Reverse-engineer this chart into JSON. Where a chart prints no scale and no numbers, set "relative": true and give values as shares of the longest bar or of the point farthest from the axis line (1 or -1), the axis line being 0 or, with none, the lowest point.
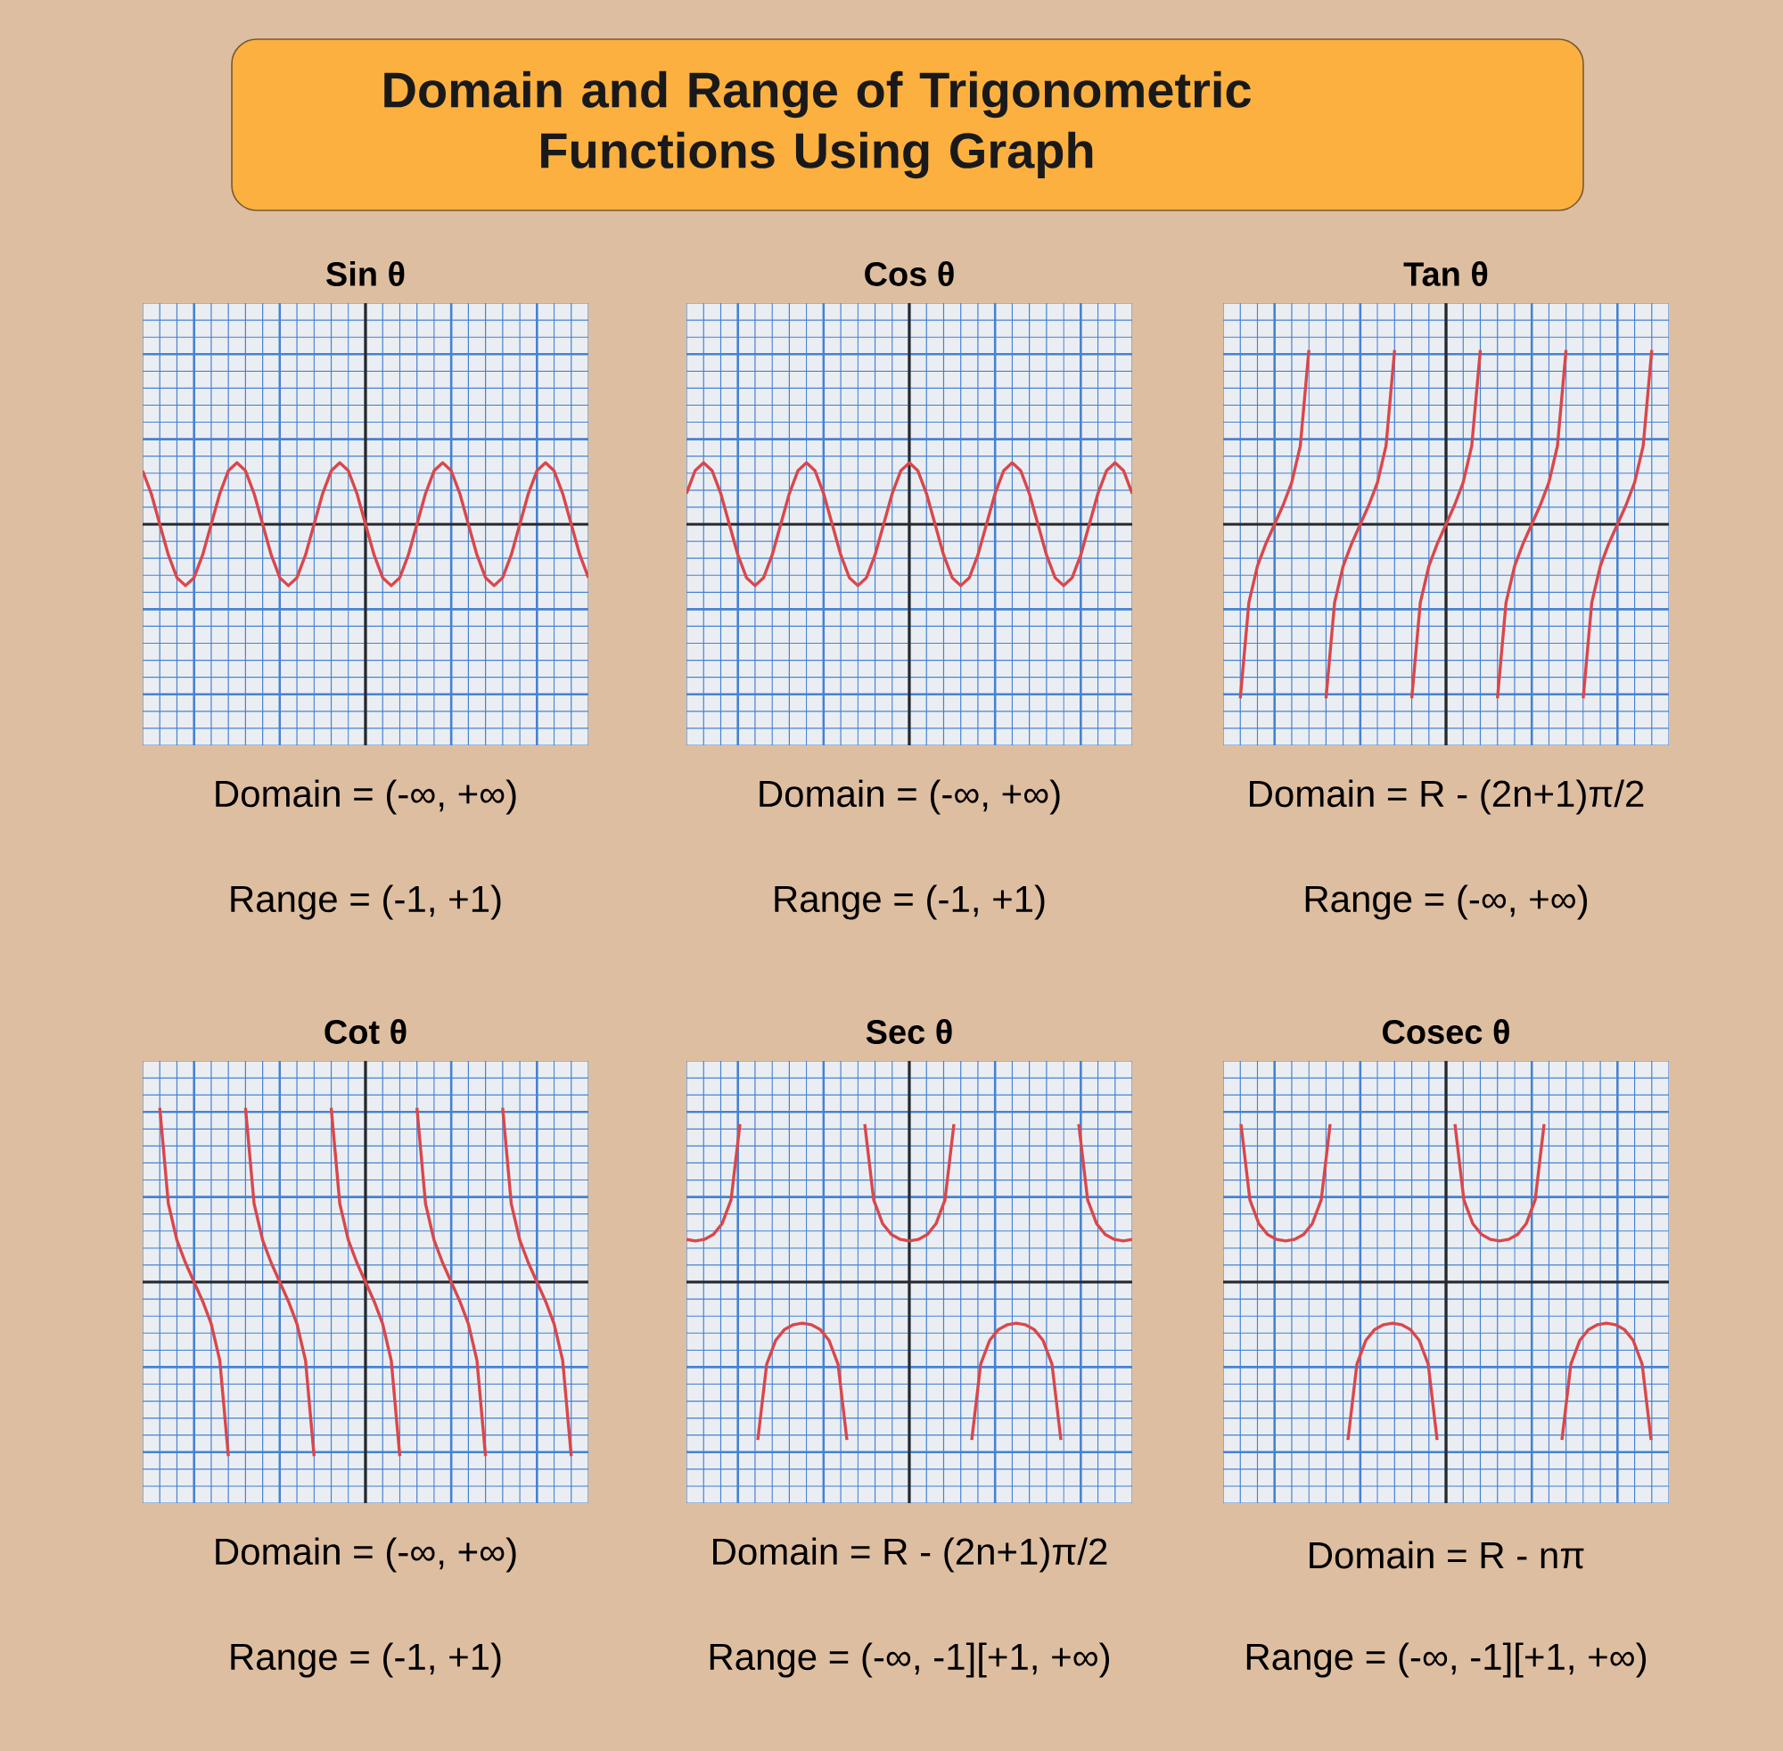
{
  "chart_data": [
    {
      "type": "other",
      "title": "Domain and Range of Trigonometric Functions Using Graph"
    },
    {
      "type": "line",
      "title": "Sin θ",
      "relative": true,
      "grid": true,
      "color": "#d9474c",
      "annotations": [
        "Domain = (-∞, +∞)",
        "Range = (-1, +1)"
      ],
      "categories": [
        null,
        null,
        null,
        null,
        null,
        null,
        null,
        null,
        null,
        null,
        null,
        null,
        null,
        null,
        null,
        null,
        null,
        null,
        null,
        null,
        null,
        null,
        null,
        null,
        null,
        null,
        null,
        null,
        null,
        null,
        null,
        null,
        null,
        null,
        null,
        null,
        null,
        null,
        null,
        null,
        null,
        null,
        null,
        null,
        null,
        null,
        null,
        null,
        null,
        null,
        null,
        null,
        null
      ],
      "values": [
        0.87,
        0.5,
        0,
        -0.5,
        -0.87,
        -1,
        -0.87,
        -0.5,
        0,
        0.5,
        0.87,
        1,
        0.87,
        0.5,
        0,
        -0.5,
        -0.87,
        -1,
        -0.87,
        -0.5,
        0,
        0.5,
        0.87,
        1,
        0.87,
        0.5,
        0,
        -0.5,
        -0.87,
        -1,
        -0.87,
        -0.5,
        0,
        0.5,
        0.87,
        1,
        0.87,
        0.5,
        0,
        -0.5,
        -0.87,
        -1,
        -0.87,
        -0.5,
        0,
        0.5,
        0.87,
        1,
        0.87,
        0.5,
        0,
        -0.5,
        -0.87
      ]
    },
    {
      "type": "line",
      "title": "Cos θ",
      "relative": true,
      "grid": true,
      "color": "#d9474c",
      "annotations": [
        "Domain = (-∞, +∞)",
        "Range = (-1, +1)"
      ],
      "categories": [
        null,
        null,
        null,
        null,
        null,
        null,
        null,
        null,
        null,
        null,
        null,
        null,
        null,
        null,
        null,
        null,
        null,
        null,
        null,
        null,
        null,
        null,
        null,
        null,
        null,
        null,
        null,
        null,
        null,
        null,
        null,
        null,
        null,
        null,
        null,
        null,
        null,
        null,
        null,
        null,
        null,
        null,
        null,
        null,
        null,
        null,
        null,
        null,
        null,
        null,
        null,
        null,
        null
      ],
      "values": [
        0.5,
        0.87,
        1,
        0.87,
        0.5,
        0,
        -0.5,
        -0.87,
        -1,
        -0.87,
        -0.5,
        0,
        0.5,
        0.87,
        1,
        0.87,
        0.5,
        0,
        -0.5,
        -0.87,
        -1,
        -0.87,
        -0.5,
        0,
        0.5,
        0.87,
        1,
        0.87,
        0.5,
        0,
        -0.5,
        -0.87,
        -1,
        -0.87,
        -0.5,
        0,
        0.5,
        0.87,
        1,
        0.87,
        0.5,
        0,
        -0.5,
        -0.87,
        -1,
        -0.87,
        -0.5,
        0,
        0.5,
        0.87,
        1,
        0.87,
        0.5
      ]
    },
    {
      "type": "line",
      "title": "Tan θ",
      "relative": true,
      "grid": true,
      "annotations": [
        "Domain = R - (2n+1)π/2",
        "Range = (-∞, +∞)"
      ],
      "categories": [
        null,
        null,
        null,
        null,
        null,
        null,
        null,
        null,
        null,
        null,
        null,
        null,
        null,
        null,
        null,
        null,
        null,
        null,
        null,
        null,
        null,
        null,
        null,
        null,
        null,
        null,
        null,
        null,
        null,
        null,
        null,
        null,
        null,
        null,
        null,
        null,
        null,
        null,
        null,
        null,
        null,
        null,
        null,
        null,
        null,
        null,
        null,
        null,
        null,
        null,
        null,
        null,
        null
      ],
      "series": [
        {
          "color": "#d9474c",
          "values": [
            null,
            null,
            -1,
            -0.45,
            -0.24,
            -0.11,
            0,
            0.11,
            0.24,
            0.45,
            1,
            null,
            null,
            null,
            null,
            null,
            null,
            null,
            null,
            null,
            null,
            null,
            null,
            null,
            null,
            null,
            null,
            null,
            null,
            null,
            null,
            null,
            null,
            null,
            null,
            null,
            null,
            null,
            null,
            null,
            null,
            null,
            null,
            null,
            null,
            null,
            null,
            null,
            null,
            null,
            null,
            null,
            null
          ]
        },
        {
          "color": "#d9474c",
          "values": [
            null,
            null,
            null,
            null,
            null,
            null,
            null,
            null,
            null,
            null,
            null,
            null,
            -1,
            -0.45,
            -0.24,
            -0.11,
            0,
            0.11,
            0.24,
            0.45,
            1,
            null,
            null,
            null,
            null,
            null,
            null,
            null,
            null,
            null,
            null,
            null,
            null,
            null,
            null,
            null,
            null,
            null,
            null,
            null,
            null,
            null,
            null,
            null,
            null,
            null,
            null,
            null,
            null,
            null,
            null,
            null,
            null
          ]
        },
        {
          "color": "#d9474c",
          "values": [
            null,
            null,
            null,
            null,
            null,
            null,
            null,
            null,
            null,
            null,
            null,
            null,
            null,
            null,
            null,
            null,
            null,
            null,
            null,
            null,
            null,
            null,
            -1,
            -0.45,
            -0.24,
            -0.11,
            0,
            0.11,
            0.24,
            0.45,
            1,
            null,
            null,
            null,
            null,
            null,
            null,
            null,
            null,
            null,
            null,
            null,
            null,
            null,
            null,
            null,
            null,
            null,
            null,
            null,
            null,
            null,
            null
          ]
        },
        {
          "color": "#d9474c",
          "values": [
            null,
            null,
            null,
            null,
            null,
            null,
            null,
            null,
            null,
            null,
            null,
            null,
            null,
            null,
            null,
            null,
            null,
            null,
            null,
            null,
            null,
            null,
            null,
            null,
            null,
            null,
            null,
            null,
            null,
            null,
            null,
            null,
            -1,
            -0.45,
            -0.24,
            -0.11,
            0,
            0.11,
            0.24,
            0.45,
            1,
            null,
            null,
            null,
            null,
            null,
            null,
            null,
            null,
            null,
            null,
            null,
            null
          ]
        },
        {
          "color": "#d9474c",
          "values": [
            null,
            null,
            null,
            null,
            null,
            null,
            null,
            null,
            null,
            null,
            null,
            null,
            null,
            null,
            null,
            null,
            null,
            null,
            null,
            null,
            null,
            null,
            null,
            null,
            null,
            null,
            null,
            null,
            null,
            null,
            null,
            null,
            null,
            null,
            null,
            null,
            null,
            null,
            null,
            null,
            null,
            null,
            -1,
            -0.45,
            -0.24,
            -0.11,
            0,
            0.11,
            0.24,
            0.45,
            1,
            null,
            null
          ]
        }
      ]
    },
    {
      "type": "line",
      "title": "Cot θ",
      "relative": true,
      "grid": true,
      "annotations": [
        "Domain = (-∞, +∞)",
        "Range = (-1, +1)"
      ],
      "categories": [
        null,
        null,
        null,
        null,
        null,
        null,
        null,
        null,
        null,
        null,
        null,
        null,
        null,
        null,
        null,
        null,
        null,
        null,
        null,
        null,
        null,
        null,
        null,
        null,
        null,
        null,
        null,
        null,
        null,
        null,
        null,
        null,
        null,
        null,
        null,
        null,
        null,
        null,
        null,
        null,
        null,
        null,
        null,
        null,
        null,
        null,
        null,
        null,
        null,
        null,
        null,
        null,
        null
      ],
      "series": [
        {
          "color": "#d9474c",
          "values": [
            null,
            null,
            1,
            0.45,
            0.24,
            0.11,
            0,
            -0.11,
            -0.24,
            -0.45,
            -1,
            null,
            null,
            null,
            null,
            null,
            null,
            null,
            null,
            null,
            null,
            null,
            null,
            null,
            null,
            null,
            null,
            null,
            null,
            null,
            null,
            null,
            null,
            null,
            null,
            null,
            null,
            null,
            null,
            null,
            null,
            null,
            null,
            null,
            null,
            null,
            null,
            null,
            null,
            null,
            null,
            null,
            null
          ]
        },
        {
          "color": "#d9474c",
          "values": [
            null,
            null,
            null,
            null,
            null,
            null,
            null,
            null,
            null,
            null,
            null,
            null,
            1,
            0.45,
            0.24,
            0.11,
            0,
            -0.11,
            -0.24,
            -0.45,
            -1,
            null,
            null,
            null,
            null,
            null,
            null,
            null,
            null,
            null,
            null,
            null,
            null,
            null,
            null,
            null,
            null,
            null,
            null,
            null,
            null,
            null,
            null,
            null,
            null,
            null,
            null,
            null,
            null,
            null,
            null,
            null,
            null
          ]
        },
        {
          "color": "#d9474c",
          "values": [
            null,
            null,
            null,
            null,
            null,
            null,
            null,
            null,
            null,
            null,
            null,
            null,
            null,
            null,
            null,
            null,
            null,
            null,
            null,
            null,
            null,
            null,
            1,
            0.45,
            0.24,
            0.11,
            0,
            -0.11,
            -0.24,
            -0.45,
            -1,
            null,
            null,
            null,
            null,
            null,
            null,
            null,
            null,
            null,
            null,
            null,
            null,
            null,
            null,
            null,
            null,
            null,
            null,
            null,
            null,
            null,
            null
          ]
        },
        {
          "color": "#d9474c",
          "values": [
            null,
            null,
            null,
            null,
            null,
            null,
            null,
            null,
            null,
            null,
            null,
            null,
            null,
            null,
            null,
            null,
            null,
            null,
            null,
            null,
            null,
            null,
            null,
            null,
            null,
            null,
            null,
            null,
            null,
            null,
            null,
            null,
            1,
            0.45,
            0.24,
            0.11,
            0,
            -0.11,
            -0.24,
            -0.45,
            -1,
            null,
            null,
            null,
            null,
            null,
            null,
            null,
            null,
            null,
            null,
            null,
            null
          ]
        },
        {
          "color": "#d9474c",
          "values": [
            null,
            null,
            null,
            null,
            null,
            null,
            null,
            null,
            null,
            null,
            null,
            null,
            null,
            null,
            null,
            null,
            null,
            null,
            null,
            null,
            null,
            null,
            null,
            null,
            null,
            null,
            null,
            null,
            null,
            null,
            null,
            null,
            null,
            null,
            null,
            null,
            null,
            null,
            null,
            null,
            null,
            null,
            1,
            0.45,
            0.24,
            0.11,
            0,
            -0.11,
            -0.24,
            -0.45,
            -1,
            null,
            null
          ]
        }
      ]
    },
    {
      "type": "line",
      "title": "Sec θ",
      "relative": true,
      "grid": true,
      "annotations": [
        "Domain = R - (2n+1)π/2",
        "Range = (-∞, -1][+1, +∞)"
      ],
      "categories": [
        null,
        null,
        null,
        null,
        null,
        null,
        null,
        null,
        null,
        null,
        null,
        null,
        null,
        null,
        null,
        null,
        null,
        null,
        null,
        null,
        null,
        null,
        null,
        null,
        null,
        null,
        null,
        null,
        null,
        null,
        null,
        null,
        null,
        null,
        null,
        null,
        null,
        null,
        null,
        null,
        null,
        null,
        null,
        null,
        null,
        null,
        null,
        null,
        null,
        null,
        null
      ],
      "series": [
        {
          "color": "#d9474c",
          "values": [
            0.27,
            0.26,
            0.27,
            0.3,
            0.37,
            0.52,
            1,
            null,
            null,
            null,
            null,
            null,
            null,
            null,
            null,
            null,
            null,
            null,
            null,
            null,
            null,
            null,
            null,
            null,
            null,
            null,
            null,
            null,
            null,
            null,
            null,
            null,
            null,
            null,
            null,
            null,
            null,
            null,
            null,
            null,
            null,
            null,
            null,
            null,
            null,
            null,
            null,
            null,
            null,
            null,
            null
          ]
        },
        {
          "color": "#d9474c",
          "values": [
            null,
            null,
            null,
            null,
            null,
            null,
            null,
            null,
            -1,
            -0.52,
            -0.37,
            -0.3,
            -0.27,
            -0.26,
            -0.27,
            -0.3,
            -0.37,
            -0.52,
            -1,
            null,
            null,
            null,
            null,
            null,
            null,
            null,
            null,
            null,
            null,
            null,
            null,
            null,
            null,
            null,
            null,
            null,
            null,
            null,
            null,
            null,
            null,
            null,
            null,
            null,
            null,
            null,
            null,
            null,
            null,
            null,
            null
          ]
        },
        {
          "color": "#d9474c",
          "values": [
            null,
            null,
            null,
            null,
            null,
            null,
            null,
            null,
            null,
            null,
            null,
            null,
            null,
            null,
            null,
            null,
            null,
            null,
            null,
            null,
            1,
            0.52,
            0.37,
            0.3,
            0.27,
            0.26,
            0.27,
            0.3,
            0.37,
            0.52,
            1,
            null,
            null,
            null,
            null,
            null,
            null,
            null,
            null,
            null,
            null,
            null,
            null,
            null,
            null,
            null,
            null,
            null,
            null,
            null,
            null
          ]
        },
        {
          "color": "#d9474c",
          "values": [
            null,
            null,
            null,
            null,
            null,
            null,
            null,
            null,
            null,
            null,
            null,
            null,
            null,
            null,
            null,
            null,
            null,
            null,
            null,
            null,
            null,
            null,
            null,
            null,
            null,
            null,
            null,
            null,
            null,
            null,
            null,
            null,
            -1,
            -0.52,
            -0.37,
            -0.3,
            -0.27,
            -0.26,
            -0.27,
            -0.3,
            -0.37,
            -0.52,
            -1,
            null,
            null,
            null,
            null,
            null,
            null,
            null,
            null
          ]
        },
        {
          "color": "#d9474c",
          "values": [
            null,
            null,
            null,
            null,
            null,
            null,
            null,
            null,
            null,
            null,
            null,
            null,
            null,
            null,
            null,
            null,
            null,
            null,
            null,
            null,
            null,
            null,
            null,
            null,
            null,
            null,
            null,
            null,
            null,
            null,
            null,
            null,
            null,
            null,
            null,
            null,
            null,
            null,
            null,
            null,
            null,
            null,
            null,
            null,
            1,
            0.52,
            0.37,
            0.3,
            0.27,
            0.26,
            0.27
          ]
        }
      ]
    },
    {
      "type": "line",
      "title": "Cosec θ",
      "relative": true,
      "grid": true,
      "annotations": [
        "Domain = R - nπ",
        "Range = (-∞, -1][+1, +∞)"
      ],
      "categories": [
        null,
        null,
        null,
        null,
        null,
        null,
        null,
        null,
        null,
        null,
        null,
        null,
        null,
        null,
        null,
        null,
        null,
        null,
        null,
        null,
        null,
        null,
        null,
        null,
        null,
        null,
        null,
        null,
        null,
        null,
        null,
        null,
        null,
        null,
        null,
        null,
        null,
        null,
        null,
        null,
        null,
        null,
        null,
        null,
        null,
        null,
        null,
        null,
        null,
        null,
        null
      ],
      "series": [
        {
          "color": "#d9474c",
          "values": [
            null,
            null,
            1,
            0.52,
            0.37,
            0.3,
            0.27,
            0.26,
            0.27,
            0.3,
            0.37,
            0.52,
            1,
            null,
            null,
            null,
            null,
            null,
            null,
            null,
            null,
            null,
            null,
            null,
            null,
            null,
            null,
            null,
            null,
            null,
            null,
            null,
            null,
            null,
            null,
            null,
            null,
            null,
            null,
            null,
            null,
            null,
            null,
            null,
            null,
            null,
            null,
            null,
            null,
            null,
            null
          ]
        },
        {
          "color": "#d9474c",
          "values": [
            null,
            null,
            null,
            null,
            null,
            null,
            null,
            null,
            null,
            null,
            null,
            null,
            null,
            null,
            -1,
            -0.52,
            -0.37,
            -0.3,
            -0.27,
            -0.26,
            -0.27,
            -0.3,
            -0.37,
            -0.52,
            -1,
            null,
            null,
            null,
            null,
            null,
            null,
            null,
            null,
            null,
            null,
            null,
            null,
            null,
            null,
            null,
            null,
            null,
            null,
            null,
            null,
            null,
            null,
            null,
            null,
            null,
            null
          ]
        },
        {
          "color": "#d9474c",
          "values": [
            null,
            null,
            null,
            null,
            null,
            null,
            null,
            null,
            null,
            null,
            null,
            null,
            null,
            null,
            null,
            null,
            null,
            null,
            null,
            null,
            null,
            null,
            null,
            null,
            null,
            null,
            1,
            0.52,
            0.37,
            0.3,
            0.27,
            0.26,
            0.27,
            0.3,
            0.37,
            0.52,
            1,
            null,
            null,
            null,
            null,
            null,
            null,
            null,
            null,
            null,
            null,
            null,
            null,
            null,
            null
          ]
        },
        {
          "color": "#d9474c",
          "values": [
            null,
            null,
            null,
            null,
            null,
            null,
            null,
            null,
            null,
            null,
            null,
            null,
            null,
            null,
            null,
            null,
            null,
            null,
            null,
            null,
            null,
            null,
            null,
            null,
            null,
            null,
            null,
            null,
            null,
            null,
            null,
            null,
            null,
            null,
            null,
            null,
            null,
            null,
            -1,
            -0.52,
            -0.37,
            -0.3,
            -0.27,
            -0.26,
            -0.27,
            -0.3,
            -0.37,
            -0.52,
            -1,
            null,
            null
          ]
        }
      ]
    }
  ]
}
